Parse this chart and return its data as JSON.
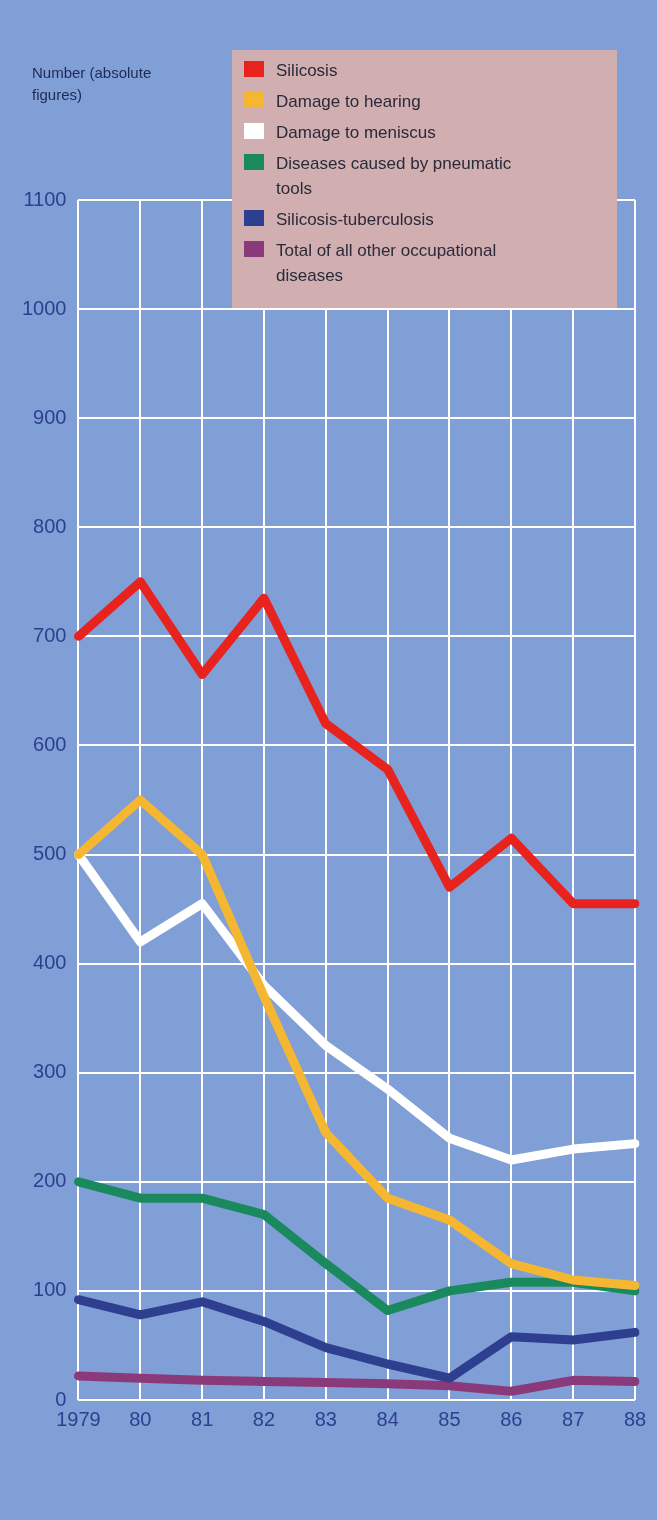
{
  "chart_data": {
    "type": "line",
    "annotations": [
      "Number (absolute figures)"
    ],
    "categories": [
      "1979",
      "80",
      "81",
      "82",
      "83",
      "84",
      "85",
      "86",
      "87",
      "88"
    ],
    "series": [
      {
        "name": "Silicosis",
        "color": "#e8231e",
        "values": [
          700,
          750,
          665,
          735,
          620,
          578,
          470,
          515,
          455,
          455
        ]
      },
      {
        "name": "Damage to hearing",
        "color": "#f5b731",
        "values": [
          500,
          550,
          500,
          370,
          245,
          185,
          165,
          125,
          110,
          105
        ]
      },
      {
        "name": "Damage to meniscus",
        "color": "#ffffff",
        "values": [
          500,
          420,
          455,
          380,
          325,
          285,
          240,
          220,
          230,
          235
        ]
      },
      {
        "name": "Diseases caused by pneumatic tools",
        "color": "#1a8a5e",
        "values": [
          200,
          185,
          185,
          170,
          125,
          82,
          100,
          108,
          108,
          100
        ]
      },
      {
        "name": "Silicosis-tuberculosis",
        "color": "#2e3f8f",
        "values": [
          92,
          78,
          90,
          72,
          48,
          33,
          20,
          58,
          55,
          62
        ]
      },
      {
        "name": "Total of all other occupational diseases",
        "color": "#8a3a7a",
        "values": [
          22,
          20,
          18,
          17,
          16,
          15,
          13,
          8,
          18,
          17
        ]
      }
    ],
    "ylim": [
      0,
      1100
    ],
    "yticks": [
      0,
      100,
      200,
      300,
      400,
      500,
      600,
      700,
      800,
      900,
      1000,
      1100
    ],
    "grid": true,
    "legend": "top right",
    "marker": "none",
    "line_style": "solid"
  }
}
